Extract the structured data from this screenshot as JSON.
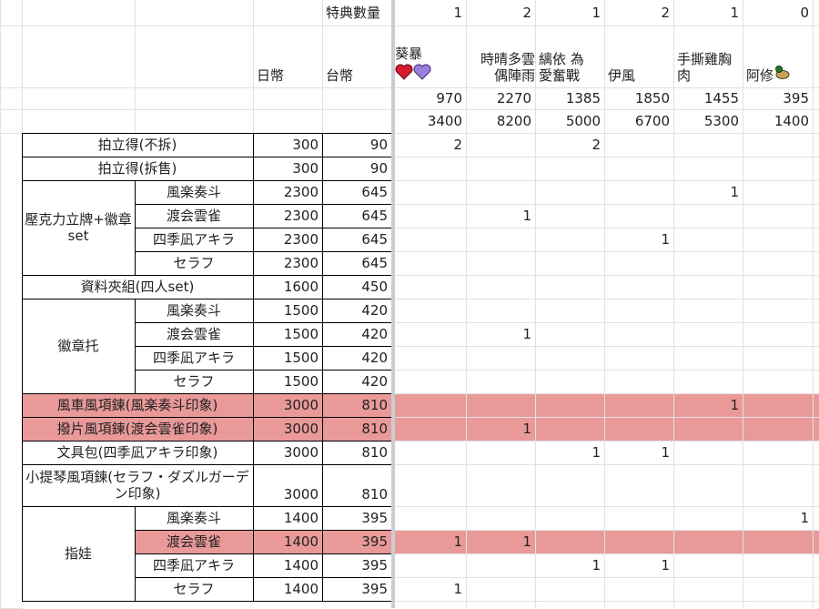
{
  "header": {
    "bonus_count_label": "特典數量",
    "jpy_label": "日幣",
    "twd_label": "台幣"
  },
  "buyers": [
    {
      "line1": "葵暴",
      "line2": "",
      "count": "1",
      "total_twd": "970",
      "total_jpy": "3400",
      "icons": [
        "red-heart-icon",
        "purple-heart-icon"
      ]
    },
    {
      "line1": "時晴多雲",
      "line2": "偶陣雨",
      "count": "2",
      "total_twd": "2270",
      "total_jpy": "8200"
    },
    {
      "line1": "縭依 為",
      "line2": "愛奮戰",
      "count": "1",
      "total_twd": "1385",
      "total_jpy": "5000"
    },
    {
      "line1": "",
      "line2": "伊風",
      "count": "2",
      "total_twd": "1850",
      "total_jpy": "6700"
    },
    {
      "line1": "手撕雞胸",
      "line2": "肉",
      "count": "1",
      "total_twd": "1455",
      "total_jpy": "5300"
    },
    {
      "line1": "",
      "line2": "阿修",
      "count": "0",
      "total_twd": "395",
      "total_jpy": "1400",
      "icons": [
        "duck-icon"
      ]
    }
  ],
  "groups": [
    {
      "label": "壓克力立牌+徽章set"
    },
    {
      "label": "徽章托"
    },
    {
      "label": "指娃"
    }
  ],
  "rows": [
    {
      "item": "拍立得(不拆)",
      "jpy": "300",
      "twd": "90",
      "q": [
        "2",
        "",
        "2",
        "",
        "",
        ""
      ]
    },
    {
      "item": "拍立得(拆售)",
      "jpy": "300",
      "twd": "90",
      "q": [
        "",
        "",
        "",
        "",
        "",
        ""
      ]
    },
    {
      "item": "風楽奏斗",
      "jpy": "2300",
      "twd": "645",
      "q": [
        "",
        "",
        "",
        "",
        "1",
        ""
      ]
    },
    {
      "item": "渡会雲雀",
      "jpy": "2300",
      "twd": "645",
      "q": [
        "",
        "1",
        "",
        "",
        "",
        ""
      ]
    },
    {
      "item": "四季凪アキラ",
      "jpy": "2300",
      "twd": "645",
      "q": [
        "",
        "",
        "",
        "1",
        "",
        ""
      ]
    },
    {
      "item": "セラフ",
      "jpy": "2300",
      "twd": "645",
      "q": [
        "",
        "",
        "",
        "",
        "",
        ""
      ]
    },
    {
      "item": "資料夾組(四人set)",
      "jpy": "1600",
      "twd": "450",
      "q": [
        "",
        "",
        "",
        "",
        "",
        ""
      ]
    },
    {
      "item": "風楽奏斗",
      "jpy": "1500",
      "twd": "420",
      "q": [
        "",
        "",
        "",
        "",
        "",
        ""
      ]
    },
    {
      "item": "渡会雲雀",
      "jpy": "1500",
      "twd": "420",
      "q": [
        "",
        "1",
        "",
        "",
        "",
        ""
      ]
    },
    {
      "item": "四季凪アキラ",
      "jpy": "1500",
      "twd": "420",
      "q": [
        "",
        "",
        "",
        "",
        "",
        ""
      ]
    },
    {
      "item": "セラフ",
      "jpy": "1500",
      "twd": "420",
      "q": [
        "",
        "",
        "",
        "",
        "",
        ""
      ]
    },
    {
      "item": "風車風項鍊(風楽奏斗印象)",
      "jpy": "3000",
      "twd": "810",
      "q": [
        "",
        "",
        "",
        "",
        "1",
        ""
      ]
    },
    {
      "item": "撥片風項鍊(渡会雲雀印象)",
      "jpy": "3000",
      "twd": "810",
      "q": [
        "",
        "1",
        "",
        "",
        "",
        ""
      ]
    },
    {
      "item": "文具包(四季凪アキラ印象)",
      "jpy": "3000",
      "twd": "810",
      "q": [
        "",
        "",
        "1",
        "1",
        "",
        ""
      ]
    },
    {
      "item": "小提琴風項鍊(セラフ・ダズルガーデン印象)",
      "jpy": "3000",
      "twd": "810",
      "q": [
        "",
        "",
        "",
        "",
        "",
        ""
      ]
    },
    {
      "item": "風楽奏斗",
      "jpy": "1400",
      "twd": "395",
      "q": [
        "",
        "",
        "",
        "",
        "",
        "1"
      ]
    },
    {
      "item": "渡会雲雀",
      "jpy": "1400",
      "twd": "395",
      "q": [
        "1",
        "1",
        "",
        "",
        "",
        ""
      ]
    },
    {
      "item": "四季凪アキラ",
      "jpy": "1400",
      "twd": "395",
      "q": [
        "",
        "",
        "1",
        "1",
        "",
        ""
      ]
    },
    {
      "item": "セラフ",
      "jpy": "1400",
      "twd": "395",
      "q": [
        "1",
        "",
        "",
        "",
        "",
        ""
      ]
    }
  ],
  "highlight_rows": [
    11,
    12,
    16
  ],
  "colors": {
    "highlight": "#ea9999",
    "grid": "#e2e2e2",
    "border": "#000000",
    "freeze_bar": "#c9cdd3"
  }
}
